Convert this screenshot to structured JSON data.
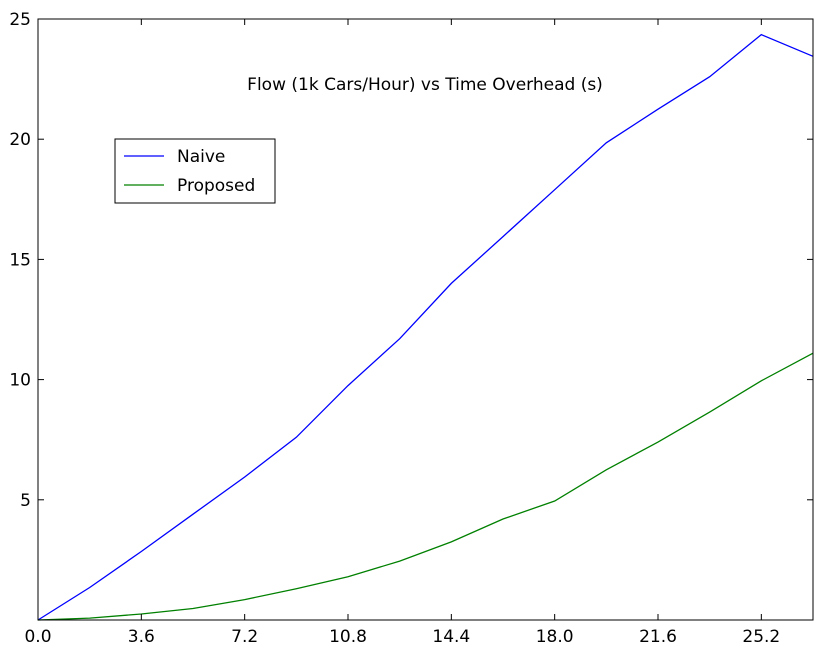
{
  "chart_data": {
    "type": "line",
    "title": "Flow (1k Cars/Hour) vs Time Overhead (s)",
    "xlabel": "",
    "ylabel": "",
    "xlim": [
      0,
      27
    ],
    "ylim": [
      0,
      25
    ],
    "x_ticks": [
      0.0,
      3.6,
      7.2,
      10.8,
      14.4,
      18.0,
      21.6,
      25.2
    ],
    "x_tick_labels": [
      "0.0",
      "3.6",
      "7.2",
      "10.8",
      "14.4",
      "18.0",
      "21.6",
      "25.2"
    ],
    "y_ticks": [
      5,
      10,
      15,
      20,
      25
    ],
    "y_tick_labels": [
      "5",
      "10",
      "15",
      "20",
      "25"
    ],
    "grid": false,
    "legend": {
      "placement": "upper-left",
      "entries": [
        "Naive",
        "Proposed"
      ]
    },
    "x": [
      0,
      1.8,
      3.6,
      5.4,
      7.2,
      9.0,
      10.8,
      12.6,
      14.4,
      16.2,
      18.0,
      19.8,
      21.6,
      23.4,
      25.2,
      27.0
    ],
    "series": [
      {
        "name": "Naive",
        "color": "#0000ff",
        "values": [
          0.0,
          1.35,
          2.85,
          4.4,
          5.95,
          7.6,
          9.75,
          11.7,
          14.0,
          15.95,
          17.9,
          19.85,
          21.25,
          22.6,
          24.35,
          23.45
        ]
      },
      {
        "name": "Proposed",
        "color": "#008000",
        "values": [
          0.0,
          0.08,
          0.25,
          0.48,
          0.85,
          1.3,
          1.8,
          2.45,
          3.25,
          4.2,
          4.95,
          6.25,
          7.4,
          8.65,
          9.95,
          11.1
        ]
      }
    ]
  }
}
